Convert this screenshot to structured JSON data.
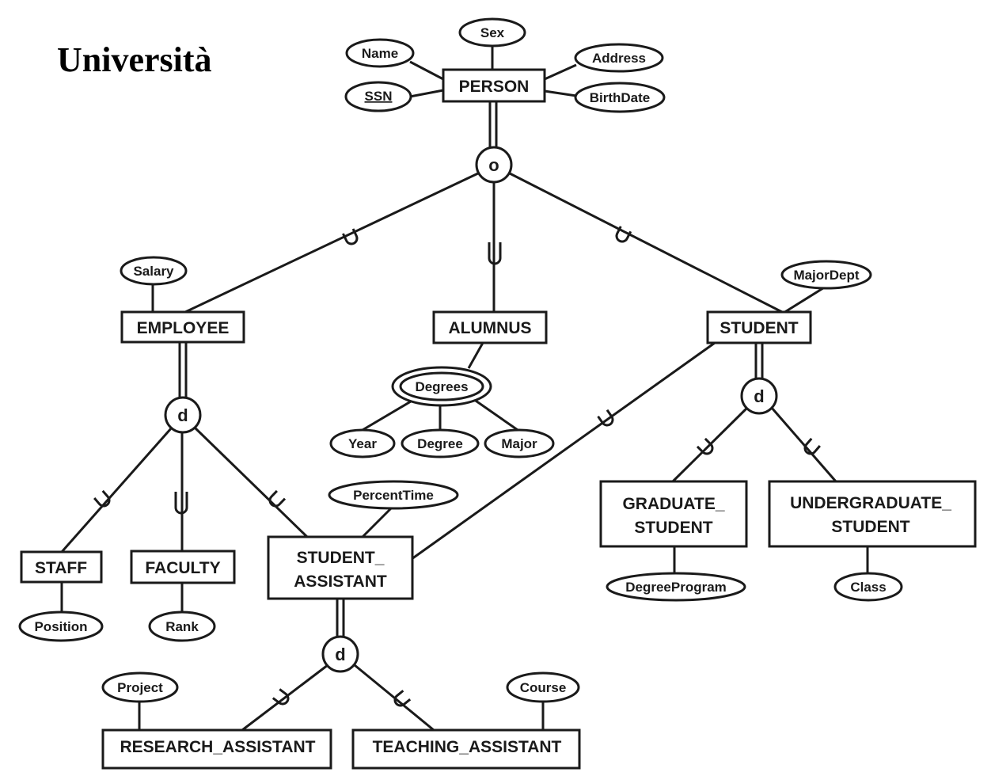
{
  "title": "Università",
  "entities": {
    "person": "PERSON",
    "employee": "EMPLOYEE",
    "alumnus": "ALUMNUS",
    "student": "STUDENT",
    "staff": "STAFF",
    "faculty": "FACULTY",
    "student_assistant": [
      "STUDENT_",
      "ASSISTANT"
    ],
    "graduate_student": [
      "GRADUATE_",
      "STUDENT"
    ],
    "undergraduate_student": [
      "UNDERGRADUATE_",
      "STUDENT"
    ],
    "research_assistant": "RESEARCH_ASSISTANT",
    "teaching_assistant": "TEACHING_ASSISTANT"
  },
  "attributes": {
    "sex": "Sex",
    "name": "Name",
    "ssn": "SSN",
    "address": "Address",
    "birthdate": "BirthDate",
    "salary": "Salary",
    "majordept": "MajorDept",
    "degrees": "Degrees",
    "year": "Year",
    "degree": "Degree",
    "major": "Major",
    "percenttime": "PercentTime",
    "position": "Position",
    "rank": "Rank",
    "degreeprogram": "DegreeProgram",
    "class": "Class",
    "project": "Project",
    "course": "Course"
  },
  "specializations": {
    "person": "o",
    "employee": "d",
    "student": "d",
    "student_assistant": "d"
  }
}
